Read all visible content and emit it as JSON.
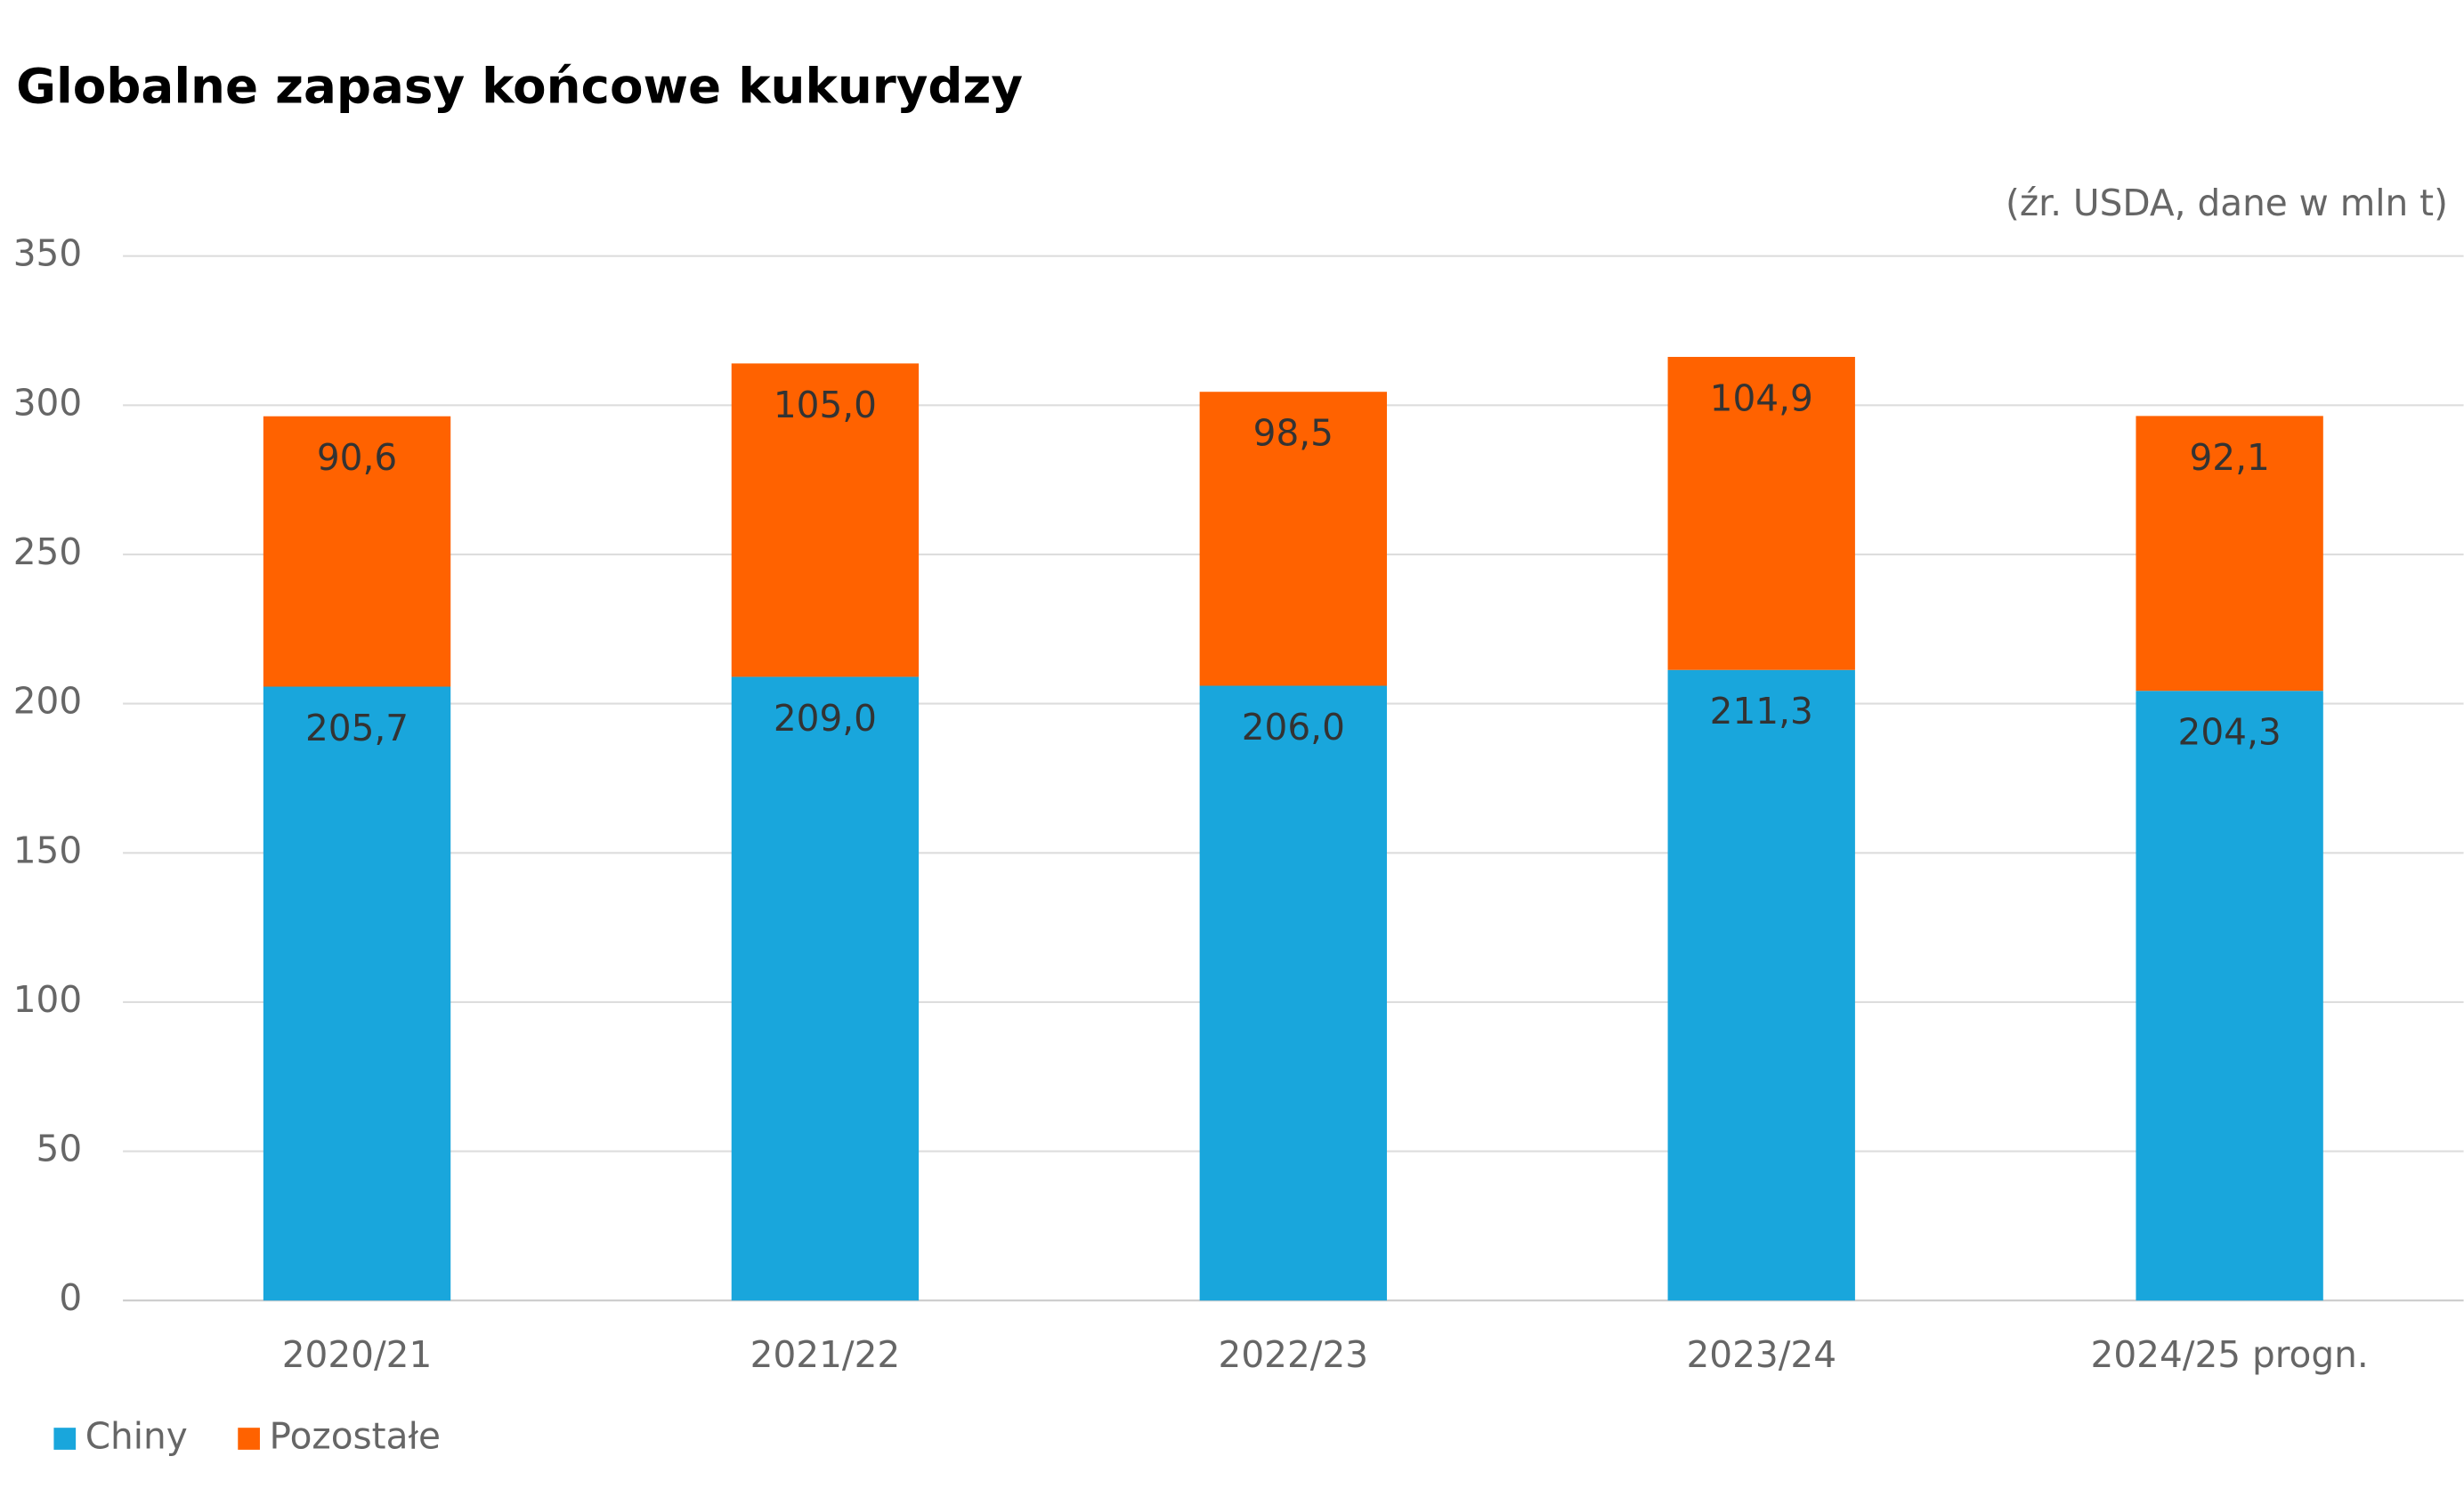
{
  "chart_data": {
    "type": "stacked_bar",
    "title": "Globalne zapasy końcowe kukurydzy",
    "subtitle": "(źr. USDA, dane w mln t)",
    "categories": [
      "2020/21",
      "2021/22",
      "2022/23",
      "2023/24",
      "2024/25 progn."
    ],
    "series": [
      {
        "name": "Chiny",
        "color": "#19a6dc",
        "values": [
          205.7,
          209.0,
          206.0,
          211.3,
          204.3
        ],
        "value_labels": [
          "205,7",
          "209,0",
          "206,0",
          "211,3",
          "204,3"
        ]
      },
      {
        "name": "Pozostałe",
        "color": "#ff6200",
        "values": [
          90.6,
          105.0,
          98.5,
          104.9,
          92.1
        ],
        "value_labels": [
          "90,6",
          "105,0",
          "98,5",
          "104,9",
          "92,1"
        ]
      }
    ],
    "ylim": [
      0,
      350
    ],
    "yticks": [
      0,
      50,
      100,
      150,
      200,
      250,
      300,
      350
    ],
    "grid": true,
    "legend": "bottom-left"
  }
}
